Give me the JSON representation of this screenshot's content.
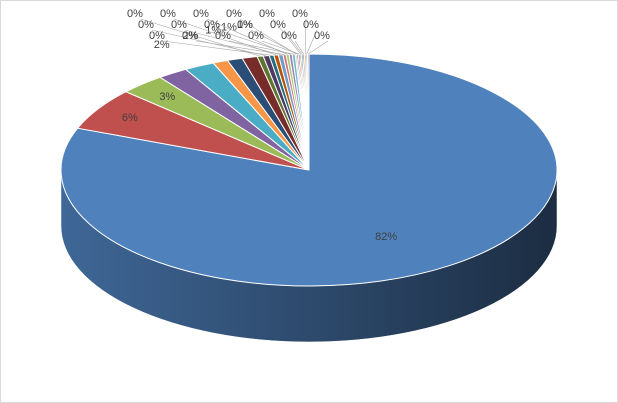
{
  "chart_data": {
    "type": "pie",
    "values": [
      82,
      6,
      3,
      2,
      2,
      1,
      1,
      1,
      0.4,
      0.4,
      0.3,
      0.3,
      0.3,
      0.2,
      0.2,
      0.2,
      0.2,
      0.1,
      0.1,
      0.1,
      0.1,
      0.1,
      0.1,
      0.1,
      0.1,
      0.1
    ],
    "value_labels": [
      "82%",
      "6%",
      "3%",
      "2%",
      "2%",
      "1%",
      "1%",
      "1%",
      "0%",
      "0%",
      "0%",
      "0%",
      "0%",
      "0%",
      "0%",
      "0%",
      "0%",
      "0%",
      "0%",
      "0%",
      "0%",
      "0%",
      "0%",
      "0%",
      "0%",
      "0%"
    ],
    "colors": [
      "#4f81bd",
      "#c0504d",
      "#9bbb59",
      "#8064a2",
      "#4bacc6",
      "#f79646",
      "#2c4d75",
      "#772c2a",
      "#5f7530",
      "#4d3b62",
      "#276a7c",
      "#b65708",
      "#729aca",
      "#cd7371",
      "#afc97a",
      "#9983b5",
      "#6fbdd1",
      "#f9ab6b",
      "#3a679c",
      "#9c3a38",
      "#7d9a40",
      "#664f82",
      "#3289a1",
      "#e07b1f",
      "#95b3d7",
      "#d99694"
    ]
  }
}
